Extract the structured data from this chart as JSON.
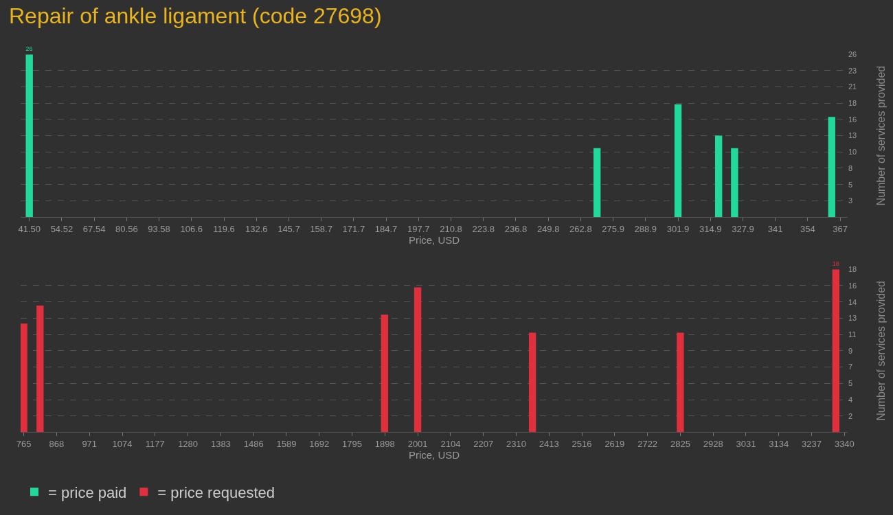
{
  "chart_data": [
    {
      "type": "bar",
      "title": "Repair of ankle ligament (code 27698)",
      "xlabel": "Price, USD",
      "ylabel": "Number of services provided",
      "x": [
        41.5,
        269.4,
        301.9,
        318.2,
        324.6,
        363.6
      ],
      "series": [
        {
          "name": "= price paid",
          "color": "#22d89a",
          "values": [
            26,
            11,
            18,
            13,
            11,
            16
          ],
          "value_labels": [
            "26",
            null,
            null,
            null,
            null,
            null
          ]
        }
      ],
      "xlim": [
        38,
        370
      ],
      "xticks": [
        {
          "value": 41.5,
          "label": "41.50"
        },
        54.52,
        67.54,
        80.56,
        93.58,
        106.6,
        {
          "value": 119.62,
          "label": "119.6"
        },
        {
          "value": 132.64,
          "label": "132.6"
        },
        {
          "value": 145.66,
          "label": "145.7"
        },
        {
          "value": 158.68,
          "label": "158.7"
        },
        171.7,
        {
          "value": 184.72,
          "label": "184.7"
        },
        {
          "value": 197.74,
          "label": "197.7"
        },
        {
          "value": 210.76,
          "label": "210.8"
        },
        {
          "value": 223.78,
          "label": "223.8"
        },
        236.8,
        {
          "value": 249.82,
          "label": "249.8"
        },
        {
          "value": 262.84,
          "label": "262.8"
        },
        {
          "value": 275.86,
          "label": "275.9"
        },
        {
          "value": 288.88,
          "label": "288.9"
        },
        301.9,
        {
          "value": 314.92,
          "label": "314.9"
        },
        {
          "value": 327.94,
          "label": "327.9"
        },
        {
          "value": 340.96,
          "label": "341"
        },
        {
          "value": 353.98,
          "label": "354"
        },
        367
      ],
      "ylim": [
        0,
        26
      ],
      "yticks": [
        {
          "value": 2.6,
          "label": "3"
        },
        {
          "value": 5.2,
          "label": "5"
        },
        {
          "value": 7.8,
          "label": "8"
        },
        {
          "value": 10.4,
          "label": "10"
        },
        13,
        {
          "value": 15.6,
          "label": "16"
        },
        {
          "value": 18.2,
          "label": "18"
        },
        {
          "value": 20.8,
          "label": "21"
        },
        {
          "value": 23.4,
          "label": "23"
        },
        26
      ],
      "grid": "y",
      "legend": "bottom left"
    },
    {
      "type": "bar",
      "xlabel": "Price, USD",
      "ylabel": "Number of services provided",
      "x": [
        765,
        816,
        1897,
        2001,
        2361,
        2825,
        3313
      ],
      "series": [
        {
          "name": "= price requested",
          "color": "#e0303e",
          "values": [
            12,
            14,
            13,
            16,
            11,
            11,
            18
          ],
          "value_labels": [
            null,
            null,
            null,
            null,
            null,
            null,
            "18"
          ]
        }
      ],
      "xlim": [
        755,
        3350
      ],
      "xticks": [
        765,
        868,
        971,
        1074,
        1177,
        1280,
        1383,
        1486,
        1589,
        1692,
        1795,
        1898,
        2001,
        2104,
        2207,
        2310,
        2413,
        2516,
        2619,
        2722,
        2825,
        2928,
        3031,
        3134,
        3237,
        3340
      ],
      "ylim": [
        0,
        18
      ],
      "yticks": [
        {
          "value": 1.8,
          "label": "2"
        },
        {
          "value": 3.6,
          "label": "4"
        },
        {
          "value": 5.4,
          "label": "5"
        },
        {
          "value": 7.2,
          "label": "7"
        },
        9,
        {
          "value": 10.8,
          "label": "11"
        },
        {
          "value": 12.6,
          "label": "13"
        },
        {
          "value": 14.4,
          "label": "14"
        },
        {
          "value": 16.2,
          "label": "16"
        },
        18
      ],
      "grid": "y",
      "legend": "bottom left"
    }
  ]
}
